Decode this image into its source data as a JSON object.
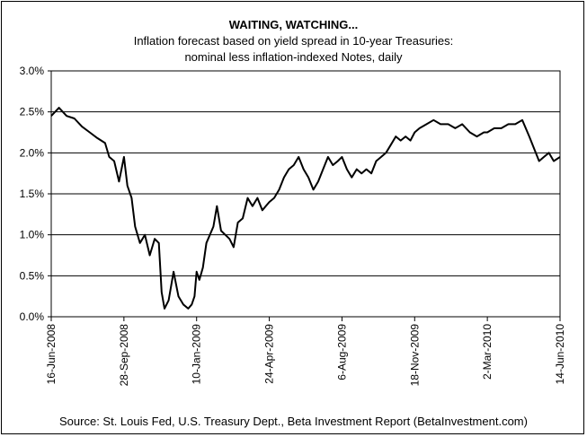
{
  "chart_data": {
    "type": "line",
    "title": "WAITING, WATCHING...",
    "subtitle_lines": [
      "Inflation forecast based on yield spread in 10-year Treasuries:",
      "nominal less inflation-indexed Notes, daily"
    ],
    "source": "Source: St. Louis Fed, U.S. Treasury Dept., Beta Investment Report (BetaInvestment.com)",
    "xlabel": "",
    "ylabel": "",
    "y_tick_labels": [
      "0.0%",
      "0.5%",
      "1.0%",
      "1.5%",
      "2.0%",
      "2.5%",
      "3.0%"
    ],
    "ylim": [
      0,
      3.0
    ],
    "x_tick_labels": [
      "16-Jun-2008",
      "28-Sep-2008",
      "10-Jan-2009",
      "24-Apr-2009",
      "6-Aug-2009",
      "18-Nov-2009",
      "2-Mar-2010",
      "14-Jun-2010"
    ],
    "x_tick_dates": [
      "2008-06-16",
      "2008-09-28",
      "2009-01-10",
      "2009-04-24",
      "2009-08-06",
      "2009-11-18",
      "2010-03-02",
      "2010-06-14"
    ],
    "grid": "horizontal",
    "legend": "none",
    "line_color": "#000000",
    "series": [
      {
        "x": [
          "2008-06-16",
          "2008-06-27",
          "2008-07-08",
          "2008-07-19",
          "2008-07-30",
          "2008-08-10",
          "2008-08-21",
          "2008-09-01",
          "2008-09-07",
          "2008-09-14",
          "2008-09-21",
          "2008-09-28",
          "2008-10-03",
          "2008-10-09",
          "2008-10-14",
          "2008-10-21",
          "2008-10-28",
          "2008-11-04",
          "2008-11-11",
          "2008-11-17",
          "2008-11-21",
          "2008-11-25",
          "2008-12-01",
          "2008-12-08",
          "2008-12-15",
          "2008-12-22",
          "2008-12-29",
          "2009-01-03",
          "2009-01-07",
          "2009-01-10",
          "2009-01-14",
          "2009-01-19",
          "2009-01-24",
          "2009-01-29",
          "2009-02-03",
          "2009-02-08",
          "2009-02-14",
          "2009-02-20",
          "2009-02-26",
          "2009-03-04",
          "2009-03-10",
          "2009-03-17",
          "2009-03-24",
          "2009-03-31",
          "2009-04-07",
          "2009-04-14",
          "2009-04-24",
          "2009-05-01",
          "2009-05-08",
          "2009-05-15",
          "2009-05-22",
          "2009-05-29",
          "2009-06-05",
          "2009-06-12",
          "2009-06-19",
          "2009-06-26",
          "2009-07-03",
          "2009-07-10",
          "2009-07-17",
          "2009-07-24",
          "2009-07-31",
          "2009-08-06",
          "2009-08-13",
          "2009-08-20",
          "2009-08-27",
          "2009-09-03",
          "2009-09-10",
          "2009-09-17",
          "2009-09-24",
          "2009-10-01",
          "2009-10-08",
          "2009-10-15",
          "2009-10-22",
          "2009-10-29",
          "2009-11-05",
          "2009-11-12",
          "2009-11-18",
          "2009-11-25",
          "2009-12-05",
          "2009-12-15",
          "2009-12-25",
          "2010-01-05",
          "2010-01-15",
          "2010-01-25",
          "2010-02-05",
          "2010-02-15",
          "2010-02-25",
          "2010-03-02",
          "2010-03-12",
          "2010-03-22",
          "2010-04-01",
          "2010-04-11",
          "2010-04-21",
          "2010-05-01",
          "2010-05-08",
          "2010-05-15",
          "2010-05-22",
          "2010-05-29",
          "2010-06-05",
          "2010-06-14"
        ],
        "y": [
          2.45,
          2.55,
          2.45,
          2.42,
          2.32,
          2.25,
          2.18,
          2.12,
          1.95,
          1.9,
          1.65,
          1.95,
          1.6,
          1.45,
          1.1,
          0.9,
          1.0,
          0.75,
          0.95,
          0.9,
          0.3,
          0.1,
          0.2,
          0.55,
          0.25,
          0.15,
          0.1,
          0.15,
          0.25,
          0.55,
          0.45,
          0.6,
          0.9,
          1.0,
          1.1,
          1.35,
          1.05,
          1.0,
          0.95,
          0.85,
          1.15,
          1.2,
          1.45,
          1.35,
          1.45,
          1.3,
          1.4,
          1.45,
          1.55,
          1.7,
          1.8,
          1.85,
          1.95,
          1.8,
          1.7,
          1.55,
          1.65,
          1.8,
          1.95,
          1.85,
          1.9,
          1.95,
          1.8,
          1.7,
          1.8,
          1.75,
          1.8,
          1.75,
          1.9,
          1.95,
          2.0,
          2.1,
          2.2,
          2.15,
          2.2,
          2.15,
          2.25,
          2.3,
          2.35,
          2.4,
          2.35,
          2.35,
          2.3,
          2.35,
          2.25,
          2.2,
          2.25,
          2.25,
          2.3,
          2.3,
          2.35,
          2.35,
          2.4,
          2.2,
          2.05,
          1.9,
          1.95,
          2.0,
          1.9,
          1.95
        ]
      }
    ]
  }
}
